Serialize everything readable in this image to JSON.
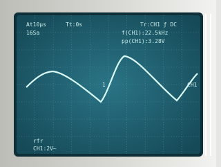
{
  "screen": {
    "timebase": "At10μs",
    "samples": "16Sa",
    "trigger_time": "Tt:0s",
    "trigger": "Tr:CH1 ƒ DC",
    "frequency": "f(CH1):22.5kHz",
    "peak_to_peak": "pp(CH1):3.28V",
    "channel_marker": "CH1",
    "trigger_marker": "1",
    "ref_label": "rfr",
    "channel_scale": "CH1:2V~"
  }
}
